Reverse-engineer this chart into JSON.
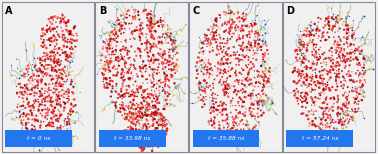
{
  "panels": [
    "A",
    "B",
    "C",
    "D"
  ],
  "timestamps": [
    "t = 0 ns",
    "t = 33.98 ns",
    "t = 35.88 ns",
    "t = 57.24 ns"
  ],
  "background_color": "#f0f0f0",
  "panel_bg": "#ffffff",
  "border_color": "#888899",
  "label_bg_color": "#2277ee",
  "label_text_color": "#ffffff",
  "panel_letter_color": "#000000",
  "figure_width": 3.78,
  "figure_height": 1.54,
  "dpi": 100,
  "hydrate_colors": [
    "#cc0000",
    "#dd1111",
    "#ee2222",
    "#ff3333",
    "#aa0000",
    "#bb1111",
    "#ffffff",
    "#ffeeee",
    "#ff6666",
    "#990000",
    "#cc3333",
    "#dd4444"
  ],
  "chain_colors": [
    "#7799aa",
    "#88aaaa",
    "#99bbaa",
    "#aaccbb",
    "#668899",
    "#779988",
    "#88aabb",
    "#99bbcc"
  ],
  "bead_colors": [
    "#ffff00",
    "#ffee00",
    "#0033cc",
    "#2244bb",
    "#ff8800",
    "#ffffff",
    "#aaccaa",
    "#44bb44"
  ]
}
